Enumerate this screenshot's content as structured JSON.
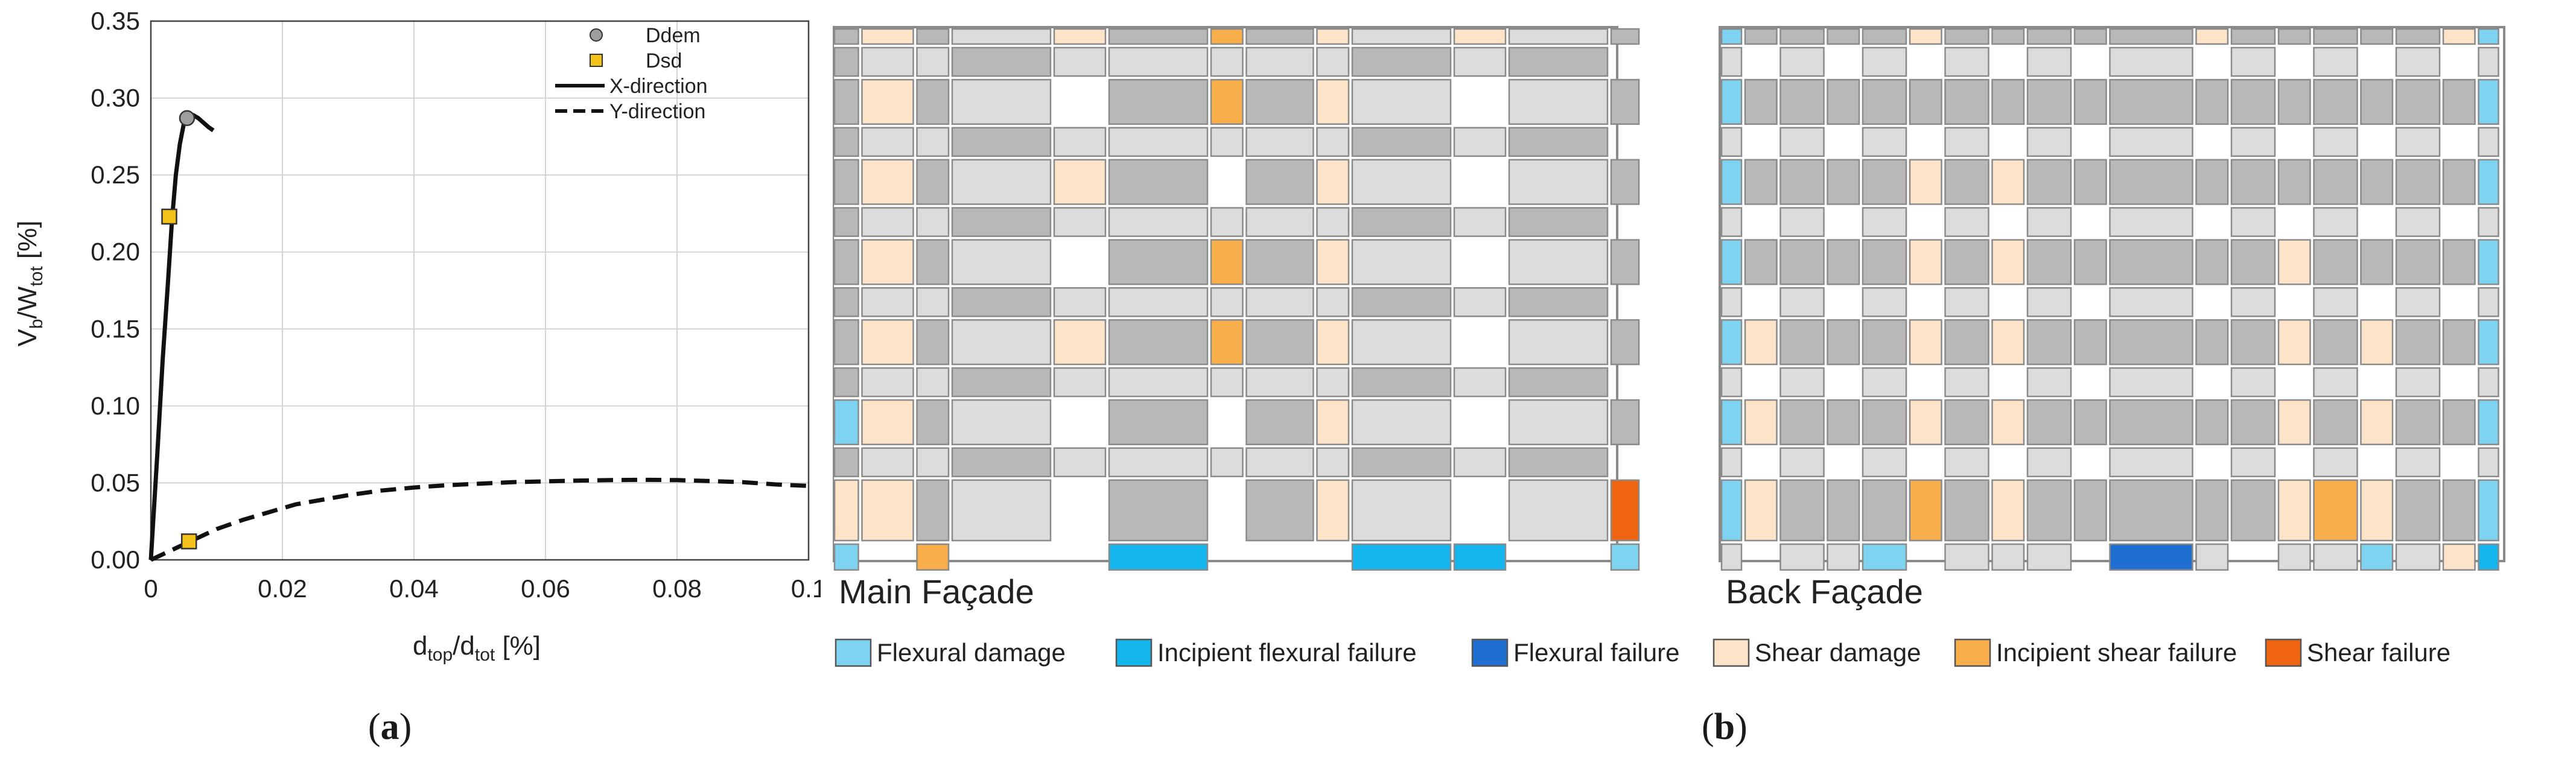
{
  "chart_data": {
    "type": "line",
    "xlabel_main": "d",
    "xlabel_sub1": "top",
    "xlabel_mid": "/d",
    "xlabel_sub2": "tot",
    "xlabel_unit": " [%]",
    "ylabel_main": "V",
    "ylabel_sub1": "b",
    "ylabel_mid": "/W",
    "ylabel_sub2": "tot",
    "ylabel_unit": " [%]",
    "xlim": [
      0,
      0.1
    ],
    "ylim": [
      0,
      0.35
    ],
    "xticks": [
      0,
      0.02,
      0.04,
      0.06,
      0.08,
      0.1
    ],
    "xtick_labels": [
      "0",
      "0.02",
      "0.04",
      "0.06",
      "0.08",
      "0.1"
    ],
    "yticks": [
      0,
      0.05,
      0.1,
      0.15,
      0.2,
      0.25,
      0.3,
      0.35
    ],
    "ytick_labels": [
      "0.00",
      "0.05",
      "0.10",
      "0.15",
      "0.20",
      "0.25",
      "0.30",
      "0.35"
    ],
    "grid": true,
    "legend_position": "top-right",
    "legend": [
      "Ddem",
      "Dsd",
      "X-direction",
      "Y-direction"
    ],
    "series": [
      {
        "name": "X-direction",
        "style": "solid",
        "x": [
          0,
          0.001,
          0.0018,
          0.0026,
          0.0032,
          0.0038,
          0.0044,
          0.005,
          0.0056,
          0.0064,
          0.0072,
          0.008,
          0.0088,
          0.0095
        ],
        "y": [
          0,
          0.07,
          0.13,
          0.18,
          0.22,
          0.25,
          0.27,
          0.283,
          0.288,
          0.289,
          0.287,
          0.284,
          0.281,
          0.279
        ]
      },
      {
        "name": "Y-direction",
        "style": "dashed",
        "x": [
          0,
          0.002,
          0.004,
          0.006,
          0.008,
          0.01,
          0.014,
          0.018,
          0.022,
          0.026,
          0.03,
          0.035,
          0.04,
          0.045,
          0.05,
          0.055,
          0.06,
          0.065,
          0.07,
          0.075,
          0.08,
          0.085,
          0.09,
          0.095,
          0.1
        ],
        "y": [
          0,
          0.004,
          0.008,
          0.012,
          0.016,
          0.02,
          0.026,
          0.031,
          0.036,
          0.039,
          0.042,
          0.045,
          0.047,
          0.0485,
          0.0495,
          0.0505,
          0.051,
          0.0515,
          0.0518,
          0.052,
          0.0518,
          0.0512,
          0.0505,
          0.049,
          0.048
        ]
      }
    ],
    "points": [
      {
        "name": "Ddem",
        "marker": "circle",
        "color": "#9e9e9e",
        "x": 0.0055,
        "y": 0.287
      },
      {
        "name": "Dsd",
        "marker": "square",
        "color": "#f2c21b",
        "x": 0.0028,
        "y": 0.223
      },
      {
        "name": "Dsd",
        "marker": "square",
        "color": "#f2c21b",
        "x": 0.0058,
        "y": 0.012
      }
    ]
  },
  "facades": {
    "main_title": "Main Façade",
    "back_title": "Back Façade"
  },
  "legend": [
    {
      "label": "Flexural damage",
      "color": "#7dd3f0"
    },
    {
      "label": "Incipient flexural failure",
      "color": "#14b4ec"
    },
    {
      "label": "Flexural failure",
      "color": "#1e6fd0"
    },
    {
      "label": "Shear damage",
      "color": "#fde3c8"
    },
    {
      "label": "Incipient shear failure",
      "color": "#f8ae4a"
    },
    {
      "label": "Shear failure",
      "color": "#ef6410"
    }
  ],
  "colors": {
    "wall_dark": "#b8b8b8",
    "wall_light": "#dcdcdc",
    "opening": "#ffffff",
    "outline": "#8a8a8a"
  },
  "panel_labels": {
    "a": "a",
    "b": "b"
  }
}
